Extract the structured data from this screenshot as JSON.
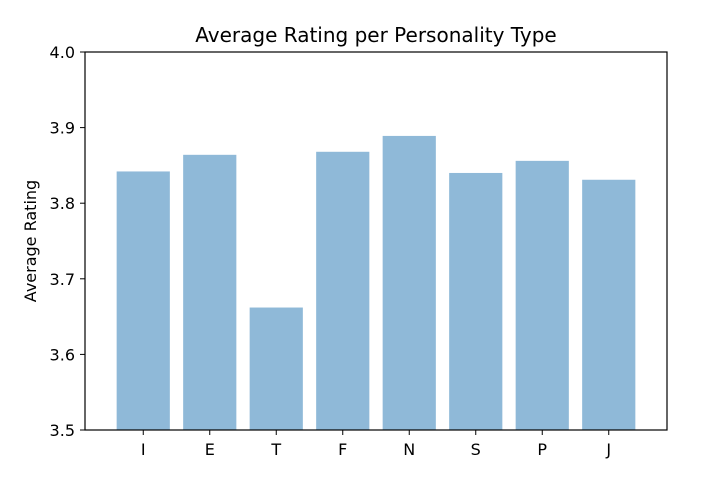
{
  "chart_data": {
    "type": "bar",
    "title": "Average Rating per Personality Type",
    "xlabel": "",
    "ylabel": "Average Rating",
    "categories": [
      "I",
      "E",
      "T",
      "F",
      "N",
      "S",
      "P",
      "J"
    ],
    "values": [
      3.842,
      3.864,
      3.662,
      3.868,
      3.889,
      3.84,
      3.856,
      3.831
    ],
    "ylim": [
      3.5,
      4.0
    ],
    "yticks": [
      "3.5",
      "3.6",
      "3.7",
      "3.8",
      "3.9",
      "4.0"
    ],
    "bar_color": "#8fb9d8",
    "grid": false,
    "legend": "none"
  }
}
